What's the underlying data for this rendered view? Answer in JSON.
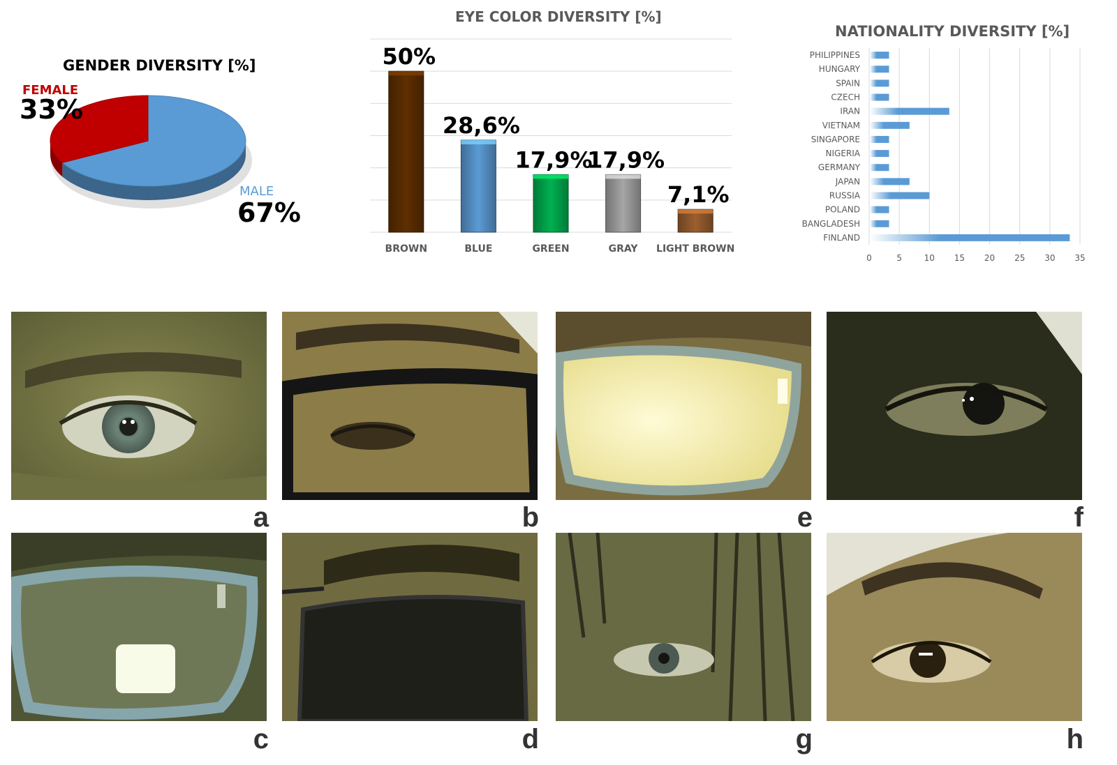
{
  "chart_data": [
    {
      "type": "pie",
      "title": "GENDER DIVERSITY [%]",
      "slices": [
        {
          "name": "FEMALE",
          "value": 33,
          "label": "33%",
          "color": "#c00000"
        },
        {
          "name": "MALE",
          "value": 67,
          "label": "67%",
          "color": "#5b9bd5"
        }
      ]
    },
    {
      "type": "bar",
      "title": "EYE COLOR DIVERSITY [%]",
      "categories": [
        "BROWN",
        "BLUE",
        "GREEN",
        "GRAY",
        "LIGHT BROWN"
      ],
      "values": [
        50,
        28.6,
        17.9,
        17.9,
        7.1
      ],
      "data_labels": [
        "50%",
        "28,6%",
        "17,9%",
        "17,9%",
        "7,1%"
      ],
      "colors": [
        "#5f2f00",
        "#5b9bd5",
        "#00b050",
        "#a6a6a6",
        "#9c5f2f"
      ],
      "ylim": [
        0,
        60
      ],
      "grid": true
    },
    {
      "type": "bar",
      "orientation": "horizontal",
      "title": "NATIONALITY DIVERSITY [%]",
      "categories": [
        "PHILIPPINES",
        "HUNGARY",
        "SPAIN",
        "CZECH",
        "IRAN",
        "VIETNAM",
        "SINGAPORE",
        "NIGERIA",
        "GERMANY",
        "JAPAN",
        "RUSSIA",
        "POLAND",
        "BANGLADESH",
        "FINLAND"
      ],
      "values": [
        3.3,
        3.3,
        3.3,
        3.3,
        13.3,
        6.7,
        3.3,
        3.3,
        3.3,
        6.7,
        10,
        3.3,
        3.3,
        33.3
      ],
      "xticks": [
        "0",
        "5",
        "10",
        "15",
        "20",
        "25",
        "30",
        "35"
      ],
      "xlim": [
        0,
        35
      ],
      "color": "#5b9bd5",
      "grid": true
    }
  ],
  "photos": {
    "letters": [
      "a",
      "b",
      "e",
      "f",
      "c",
      "d",
      "g",
      "h"
    ]
  }
}
